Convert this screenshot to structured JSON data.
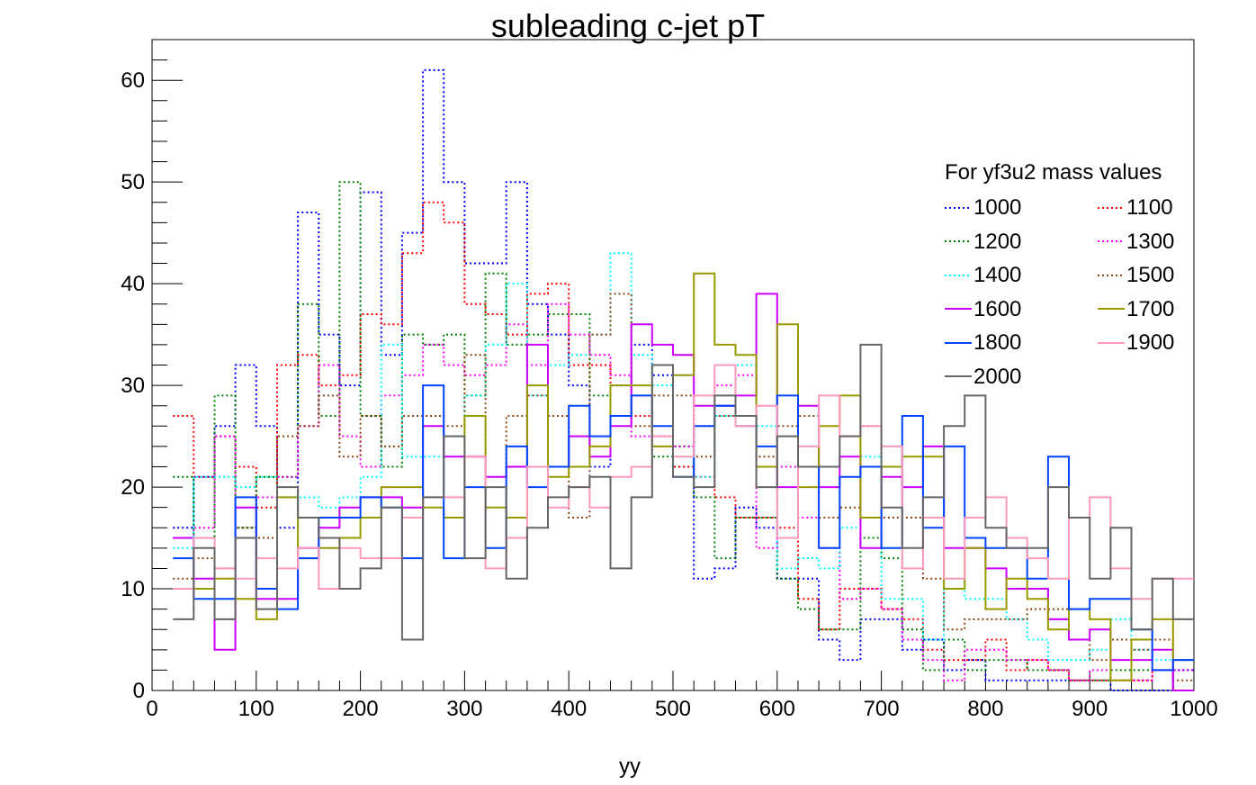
{
  "chart_data": {
    "type": "histogram",
    "title": "subleading c-jet pT",
    "xlabel": "yy",
    "ylabel": "",
    "xlim": [
      0,
      1000
    ],
    "ylim": [
      0,
      64
    ],
    "x_ticks": [
      0,
      100,
      200,
      300,
      400,
      500,
      600,
      700,
      800,
      900,
      1000
    ],
    "y_ticks": [
      0,
      10,
      20,
      30,
      40,
      50,
      60
    ],
    "bin_width": 20,
    "bin_start": 20,
    "legend": {
      "title": "For yf3u2 mass values",
      "position": "top-right",
      "columns": 2
    },
    "series": [
      {
        "name": "1000",
        "color": "#0000ff",
        "style": "dotted",
        "values": [
          16,
          21,
          26,
          32,
          26,
          16,
          47,
          35,
          30,
          49,
          33,
          45,
          61,
          50,
          42,
          42,
          50,
          38,
          35,
          30,
          22,
          30,
          34,
          31,
          22,
          11,
          12,
          18,
          16,
          11,
          11,
          5,
          3,
          7,
          7,
          4,
          5,
          2,
          3,
          1,
          1,
          1,
          1,
          1,
          1,
          0,
          0,
          0,
          2
        ]
      },
      {
        "name": "1100",
        "color": "#ff0000",
        "style": "dotted",
        "values": [
          27,
          21,
          25,
          22,
          18,
          32,
          33,
          30,
          31,
          37,
          36,
          43,
          48,
          46,
          38,
          37,
          35,
          39,
          40,
          32,
          32,
          27,
          27,
          25,
          22,
          21,
          19,
          17,
          17,
          16,
          9,
          6,
          10,
          10,
          8,
          7,
          4,
          3,
          3,
          5,
          2,
          3,
          2,
          1,
          1,
          1,
          1,
          2,
          0
        ]
      },
      {
        "name": "1200",
        "color": "#008000",
        "style": "dotted",
        "values": [
          21,
          15,
          29,
          16,
          21,
          21,
          38,
          27,
          50,
          27,
          22,
          35,
          34,
          35,
          29,
          41,
          34,
          35,
          37,
          37,
          29,
          27,
          29,
          23,
          24,
          19,
          13,
          17,
          17,
          11,
          8,
          6,
          6,
          15,
          13,
          6,
          2,
          5,
          2,
          3,
          3,
          2,
          2,
          1,
          1,
          2,
          2,
          2,
          0
        ]
      },
      {
        "name": "1300",
        "color": "#ff00ff",
        "style": "dotted",
        "values": [
          15,
          16,
          25,
          15,
          19,
          21,
          26,
          32,
          25,
          22,
          29,
          31,
          34,
          32,
          31,
          32,
          36,
          32,
          38,
          35,
          33,
          31,
          25,
          24,
          24,
          26,
          30,
          31,
          14,
          22,
          17,
          14,
          9,
          10,
          8,
          5,
          3,
          1,
          4,
          4,
          3,
          3,
          2,
          1,
          2,
          3,
          1,
          2,
          2
        ]
      },
      {
        "name": "1400",
        "color": "#00ffff",
        "style": "dotted",
        "values": [
          14,
          21,
          21,
          20,
          21,
          19,
          19,
          18,
          19,
          21,
          34,
          23,
          23,
          25,
          29,
          34,
          40,
          29,
          32,
          33,
          35,
          43,
          33,
          30,
          23,
          21,
          27,
          32,
          26,
          12,
          13,
          12,
          16,
          23,
          9,
          9,
          5,
          11,
          9,
          9,
          7,
          5,
          3,
          3,
          4,
          7,
          4,
          3,
          3
        ]
      },
      {
        "name": "1500",
        "color": "#8b4513",
        "style": "dotted",
        "values": [
          11,
          13,
          12,
          16,
          15,
          25,
          26,
          29,
          23,
          27,
          24,
          27,
          27,
          26,
          33,
          21,
          27,
          29,
          27,
          17,
          35,
          39,
          26,
          29,
          29,
          23,
          27,
          27,
          23,
          26,
          27,
          17,
          18,
          26,
          17,
          17,
          11,
          6,
          7,
          7,
          7,
          8,
          8,
          5,
          3,
          5,
          4,
          5,
          1
        ]
      },
      {
        "name": "1600",
        "color": "#cc00ff",
        "style": "solid",
        "values": [
          15,
          11,
          4,
          18,
          9,
          9,
          14,
          16,
          18,
          19,
          19,
          18,
          26,
          23,
          23,
          21,
          22,
          34,
          22,
          25,
          23,
          26,
          36,
          34,
          33,
          28,
          28,
          29,
          39,
          20,
          28,
          20,
          23,
          14,
          21,
          20,
          24,
          14,
          14,
          12,
          10,
          10,
          7,
          5,
          6,
          3,
          3,
          4,
          0
        ]
      },
      {
        "name": "1700",
        "color": "#999900",
        "style": "solid",
        "values": [
          10,
          10,
          11,
          9,
          7,
          19,
          13,
          14,
          15,
          17,
          20,
          20,
          18,
          17,
          27,
          18,
          17,
          30,
          21,
          22,
          24,
          30,
          30,
          24,
          31,
          41,
          34,
          33,
          22,
          36,
          20,
          26,
          29,
          17,
          22,
          23,
          23,
          10,
          14,
          8,
          11,
          9,
          6,
          8,
          7,
          1,
          5,
          7,
          3
        ]
      },
      {
        "name": "1800",
        "color": "#0044ff",
        "style": "solid",
        "values": [
          13,
          9,
          9,
          19,
          10,
          8,
          13,
          17,
          17,
          19,
          18,
          13,
          30,
          13,
          20,
          14,
          24,
          20,
          22,
          28,
          25,
          27,
          29,
          26,
          21,
          26,
          28,
          26,
          24,
          29,
          22,
          14,
          21,
          22,
          14,
          27,
          16,
          24,
          15,
          14,
          14,
          11,
          23,
          8,
          9,
          9,
          6,
          2,
          3
        ]
      },
      {
        "name": "1900",
        "color": "#ff99bb",
        "style": "solid",
        "values": [
          10,
          15,
          12,
          11,
          13,
          12,
          14,
          10,
          14,
          13,
          13,
          17,
          19,
          19,
          23,
          12,
          15,
          22,
          18,
          20,
          18,
          21,
          22,
          25,
          23,
          29,
          32,
          26,
          28,
          15,
          24,
          29,
          25,
          26,
          24,
          12,
          17,
          11,
          17,
          19,
          15,
          13,
          11,
          17,
          19,
          12,
          9,
          11,
          11
        ]
      },
      {
        "name": "2000",
        "color": "#666666",
        "style": "solid",
        "values": [
          7,
          14,
          7,
          15,
          8,
          20,
          17,
          15,
          10,
          12,
          18,
          5,
          19,
          25,
          13,
          20,
          11,
          16,
          19,
          20,
          21,
          12,
          19,
          32,
          21,
          20,
          29,
          27,
          20,
          25,
          22,
          22,
          25,
          34,
          18,
          14,
          19,
          26,
          29,
          16,
          14,
          14,
          20,
          17,
          11,
          16,
          6,
          11,
          7
        ]
      }
    ]
  }
}
